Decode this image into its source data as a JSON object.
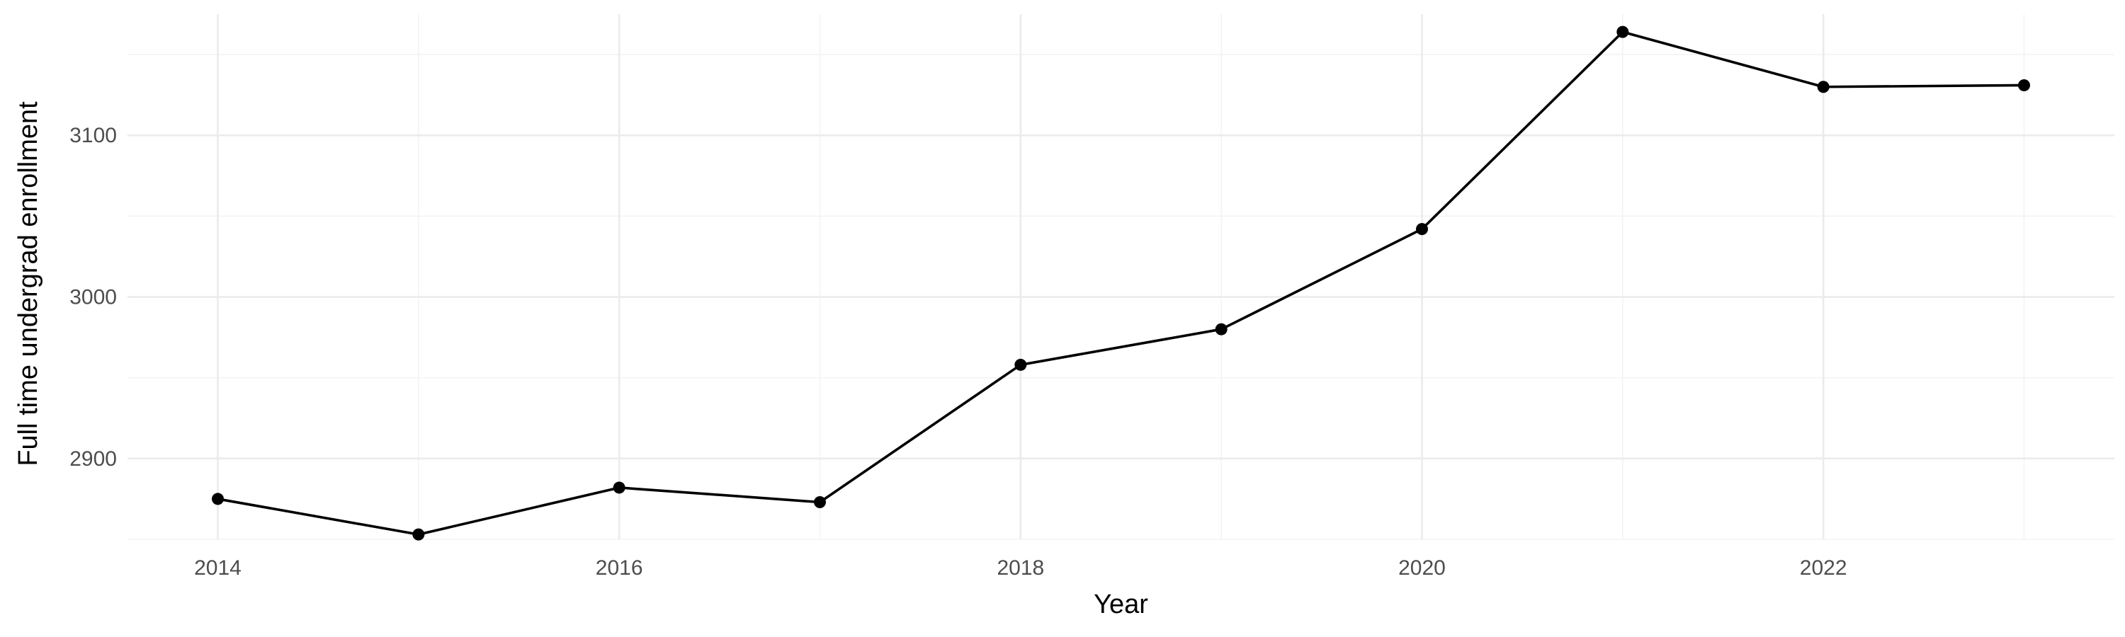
{
  "chart_data": {
    "type": "line",
    "xlabel": "Year",
    "ylabel": "Full time undergrad enrollment",
    "x": [
      2014,
      2015,
      2016,
      2017,
      2018,
      2019,
      2020,
      2021,
      2022,
      2023
    ],
    "series": [
      {
        "values": [
          2875,
          2853,
          2882,
          2873,
          2958,
          2980,
          3042,
          3164,
          3130,
          3131
        ]
      }
    ],
    "xlim": [
      2013.55,
      2023.45
    ],
    "ylim": [
      2850,
      3175
    ],
    "x_major_ticks": [
      2014,
      2016,
      2018,
      2020,
      2022
    ],
    "x_minor_ticks": [
      2015,
      2017,
      2019,
      2021,
      2023
    ],
    "y_major_ticks": [
      2900,
      3000,
      3100
    ],
    "y_minor_ticks": [
      2850,
      2950,
      3050,
      3150
    ],
    "x_tick_labels": [
      "2014",
      "2016",
      "2018",
      "2020",
      "2022"
    ],
    "y_tick_labels": [
      "2900",
      "3000",
      "3100"
    ],
    "grid": true,
    "legend": "none",
    "colors": {
      "line": "#000000",
      "points": "#000000",
      "grid": "#ebebeb",
      "tick_text": "#4d4d4d"
    }
  }
}
